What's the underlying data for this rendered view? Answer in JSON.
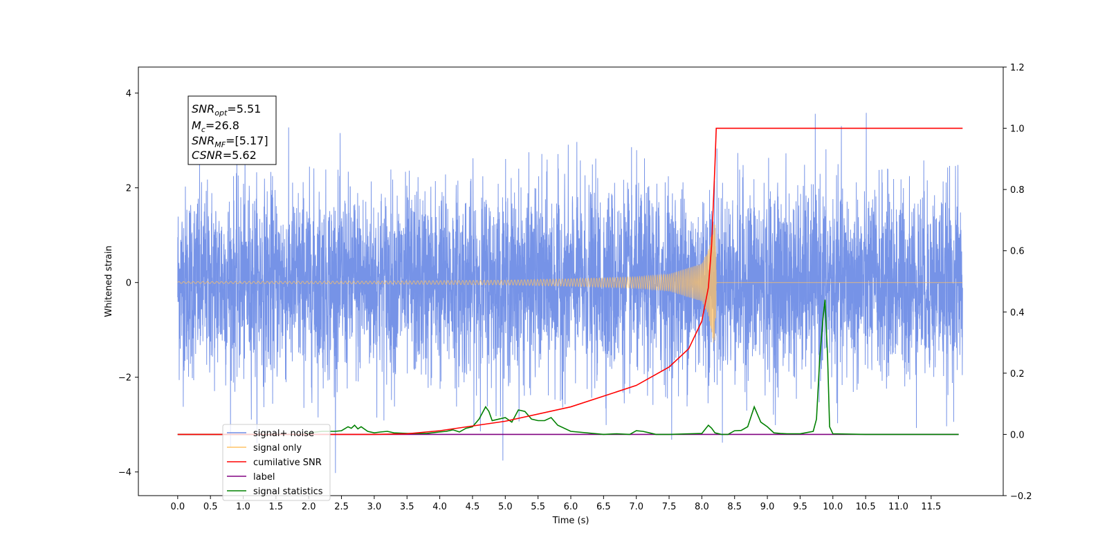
{
  "chart_data": {
    "type": "line",
    "xlabel": "Time (s)",
    "ylabel": "Whitened strain",
    "xlim": [
      -0.6,
      12.6
    ],
    "ylim": [
      -4.5,
      4.55
    ],
    "y2lim": [
      -0.2,
      1.2
    ],
    "x_ticks": [
      "0.0",
      "0.5",
      "1.0",
      "1.5",
      "2.0",
      "2.5",
      "3.0",
      "3.5",
      "4.0",
      "4.5",
      "5.0",
      "5.5",
      "6.0",
      "6.5",
      "7.0",
      "7.5",
      "8.0",
      "8.5",
      "9.0",
      "9.5",
      "10.0",
      "10.5",
      "11.0",
      "11.5"
    ],
    "y_ticks": [
      "4",
      "2",
      "0",
      "−2",
      "−4"
    ],
    "y2_ticks": [
      "1.2",
      "1.0",
      "0.8",
      "0.6",
      "0.4",
      "0.2",
      "0.0",
      "−0.2"
    ],
    "grid": false,
    "legend_position": "lower-left",
    "annotation": {
      "line1_main": "SNR",
      "line1_sub": "opt",
      "line1_value": "=5.51",
      "line2_main": "M",
      "line2_sub": "c",
      "line2_value": "=26.8",
      "line3_main": "SNR",
      "line3_sub": "MF",
      "line3_value": "=[5.17]",
      "line4_main": "CSNR",
      "line4_value": "=5.62"
    },
    "series": [
      {
        "name": "signal+ noise",
        "color": "#6f8de6",
        "axis": "left",
        "amplitude_envelope": 4.1,
        "x_range": [
          0.0,
          11.98
        ]
      },
      {
        "name": "signal only",
        "color": "#ffc266",
        "axis": "left",
        "envelope_x": [
          0.0,
          3.0,
          5.0,
          6.0,
          7.0,
          7.5,
          8.0,
          8.1,
          8.18,
          8.21,
          8.22,
          11.98
        ],
        "envelope_y": [
          0.02,
          0.03,
          0.05,
          0.08,
          0.12,
          0.18,
          0.4,
          0.7,
          1.3,
          1.2,
          0.0,
          0.0
        ]
      },
      {
        "name": "cumilative SNR",
        "color": "#ff0000",
        "axis": "right",
        "x": [
          0.0,
          2.0,
          3.0,
          3.5,
          4.0,
          5.0,
          6.0,
          7.0,
          7.5,
          7.8,
          8.0,
          8.1,
          8.15,
          8.2,
          8.22,
          11.98
        ],
        "y": [
          0.0,
          0.0,
          0.0,
          0.002,
          0.012,
          0.043,
          0.09,
          0.16,
          0.22,
          0.28,
          0.37,
          0.48,
          0.62,
          0.88,
          1.0,
          1.0
        ]
      },
      {
        "name": "label",
        "color": "#800080",
        "axis": "right",
        "x": [
          0.0,
          11.92
        ],
        "y": [
          0.0,
          0.0
        ]
      },
      {
        "name": "signal statistics",
        "color": "#008000",
        "axis": "right",
        "x": [
          0.0,
          1.9,
          2.0,
          2.2,
          2.3,
          2.4,
          2.5,
          2.6,
          2.65,
          2.7,
          2.75,
          2.8,
          2.9,
          3.0,
          3.1,
          3.2,
          3.3,
          3.5,
          3.8,
          4.0,
          4.1,
          4.2,
          4.3,
          4.4,
          4.5,
          4.6,
          4.7,
          4.75,
          4.8,
          4.9,
          5.0,
          5.1,
          5.2,
          5.3,
          5.4,
          5.5,
          5.6,
          5.7,
          5.8,
          6.0,
          6.5,
          6.7,
          6.9,
          7.0,
          7.1,
          7.2,
          7.3,
          7.5,
          8.0,
          8.1,
          8.15,
          8.2,
          8.3,
          8.4,
          8.5,
          8.6,
          8.7,
          8.8,
          8.9,
          9.0,
          9.1,
          9.2,
          9.3,
          9.5,
          9.7,
          9.75,
          9.8,
          9.85,
          9.88,
          9.92,
          9.95,
          10.0,
          10.5,
          11.0,
          11.92
        ],
        "y": [
          0,
          0,
          0.005,
          0.01,
          0.01,
          0.01,
          0.012,
          0.025,
          0.02,
          0.03,
          0.018,
          0.025,
          0.01,
          0.005,
          0.008,
          0.01,
          0.005,
          0.003,
          0.003,
          0.008,
          0.01,
          0.015,
          0.008,
          0.02,
          0.025,
          0.05,
          0.09,
          0.075,
          0.045,
          0.05,
          0.055,
          0.04,
          0.08,
          0.075,
          0.05,
          0.045,
          0.045,
          0.055,
          0.03,
          0.01,
          0.0,
          0.002,
          0.0,
          0.012,
          0.01,
          0.005,
          0.0,
          0.0,
          0.003,
          0.03,
          0.02,
          0.005,
          0.0,
          0.0,
          0.012,
          0.013,
          0.025,
          0.09,
          0.04,
          0.025,
          0.005,
          0.003,
          0.002,
          0.002,
          0.01,
          0.05,
          0.25,
          0.38,
          0.44,
          0.25,
          0.025,
          0.002,
          0.0,
          0.0,
          0.0
        ]
      }
    ]
  }
}
